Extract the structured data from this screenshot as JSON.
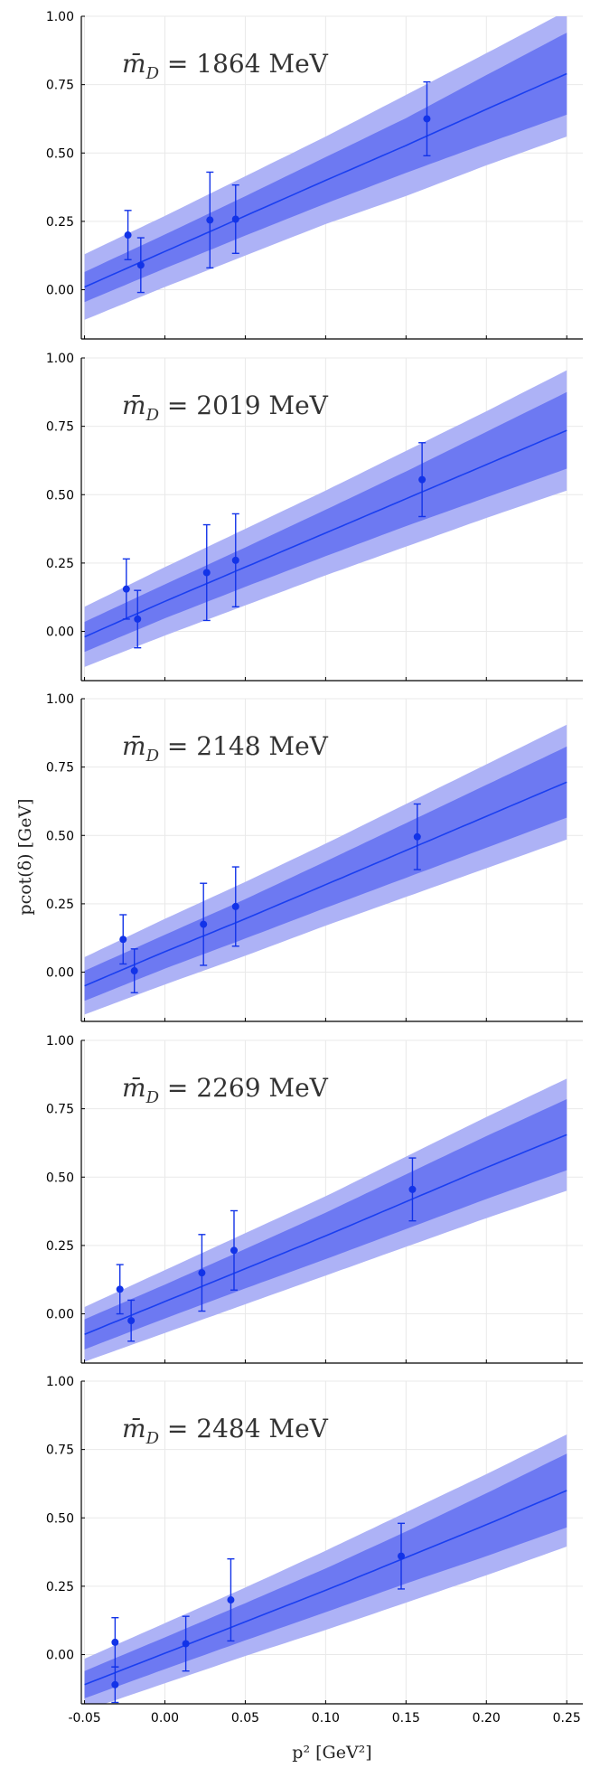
{
  "chart_data": {
    "type": "line",
    "layout": "stacked-panels",
    "xlabel": "p² [GeV²]",
    "ylabel": "pcot(δ) [GeV]",
    "xlim": [
      -0.052,
      0.26
    ],
    "ylim": [
      -0.18,
      1.0
    ],
    "xticks": [
      -0.05,
      0.0,
      0.05,
      0.1,
      0.15,
      0.2,
      0.25
    ],
    "xtick_labels": [
      "-0.05",
      "0.00",
      "0.05",
      "0.10",
      "0.15",
      "0.20",
      "0.25"
    ],
    "yticks": [
      0.0,
      0.25,
      0.5,
      0.75,
      1.0
    ],
    "ytick_labels": [
      "0.00",
      "0.25",
      "0.50",
      "0.75",
      "1.00"
    ],
    "grid": true,
    "colors": {
      "line": "#1a3ff0",
      "band_inner": "#6d79f2",
      "band_outer": "#adb2f6",
      "point": "#1233e8"
    },
    "panels": [
      {
        "label_symbol": "m̄",
        "label_sub": "D",
        "label_value": " = 1864 MeV",
        "fit": {
          "x": [
            -0.05,
            0.0,
            0.05,
            0.1,
            0.15,
            0.2,
            0.25
          ],
          "y": [
            0.01,
            0.14,
            0.27,
            0.4,
            0.5275,
            0.66,
            0.79
          ]
        },
        "band_inner_halfwidth": [
          0.055,
          0.062,
          0.072,
          0.085,
          0.1,
          0.125,
          0.15
        ],
        "band_outer_halfwidth": [
          0.12,
          0.13,
          0.145,
          0.16,
          0.185,
          0.205,
          0.23
        ],
        "points": [
          {
            "x": -0.023,
            "y": 0.2,
            "yerr_low": 0.09,
            "yerr_high": 0.09
          },
          {
            "x": -0.015,
            "y": 0.09,
            "yerr_low": 0.1,
            "yerr_high": 0.1
          },
          {
            "x": 0.028,
            "y": 0.255,
            "yerr_low": 0.175,
            "yerr_high": 0.175
          },
          {
            "x": 0.044,
            "y": 0.258,
            "yerr_low": 0.125,
            "yerr_high": 0.125
          },
          {
            "x": 0.163,
            "y": 0.625,
            "yerr_low": 0.135,
            "yerr_high": 0.135
          }
        ]
      },
      {
        "label_symbol": "m̄",
        "label_sub": "D",
        "label_value": " = 2019 MeV",
        "fit": {
          "x": [
            -0.05,
            0.0,
            0.05,
            0.1,
            0.15,
            0.2,
            0.25
          ],
          "y": [
            -0.02,
            0.11,
            0.235,
            0.36,
            0.485,
            0.61,
            0.735
          ]
        },
        "band_inner_halfwidth": [
          0.055,
          0.062,
          0.072,
          0.085,
          0.1,
          0.12,
          0.14
        ],
        "band_outer_halfwidth": [
          0.11,
          0.125,
          0.14,
          0.155,
          0.175,
          0.195,
          0.22
        ],
        "points": [
          {
            "x": -0.024,
            "y": 0.155,
            "yerr_low": 0.11,
            "yerr_high": 0.11
          },
          {
            "x": -0.017,
            "y": 0.045,
            "yerr_low": 0.105,
            "yerr_high": 0.105
          },
          {
            "x": 0.026,
            "y": 0.215,
            "yerr_low": 0.175,
            "yerr_high": 0.175
          },
          {
            "x": 0.044,
            "y": 0.26,
            "yerr_low": 0.17,
            "yerr_high": 0.17
          },
          {
            "x": 0.16,
            "y": 0.555,
            "yerr_low": 0.135,
            "yerr_high": 0.135
          }
        ]
      },
      {
        "label_symbol": "m̄",
        "label_sub": "D",
        "label_value": " = 2148 MeV",
        "fit": {
          "x": [
            -0.05,
            0.0,
            0.05,
            0.1,
            0.15,
            0.2,
            0.25
          ],
          "y": [
            -0.05,
            0.075,
            0.195,
            0.32,
            0.445,
            0.57,
            0.695
          ]
        },
        "band_inner_halfwidth": [
          0.055,
          0.062,
          0.072,
          0.085,
          0.1,
          0.115,
          0.13
        ],
        "band_outer_halfwidth": [
          0.105,
          0.12,
          0.135,
          0.15,
          0.17,
          0.19,
          0.21
        ],
        "points": [
          {
            "x": -0.026,
            "y": 0.12,
            "yerr_low": 0.09,
            "yerr_high": 0.09
          },
          {
            "x": -0.019,
            "y": 0.005,
            "yerr_low": 0.08,
            "yerr_high": 0.08
          },
          {
            "x": 0.024,
            "y": 0.175,
            "yerr_low": 0.15,
            "yerr_high": 0.15
          },
          {
            "x": 0.044,
            "y": 0.24,
            "yerr_low": 0.145,
            "yerr_high": 0.145
          },
          {
            "x": 0.157,
            "y": 0.495,
            "yerr_low": 0.12,
            "yerr_high": 0.12
          }
        ]
      },
      {
        "label_symbol": "m̄",
        "label_sub": "D",
        "label_value": " = 2269 MeV",
        "fit": {
          "x": [
            -0.05,
            0.0,
            0.05,
            0.1,
            0.15,
            0.2,
            0.25
          ],
          "y": [
            -0.075,
            0.045,
            0.165,
            0.285,
            0.41,
            0.535,
            0.655
          ]
        },
        "band_inner_halfwidth": [
          0.055,
          0.062,
          0.072,
          0.085,
          0.1,
          0.115,
          0.13
        ],
        "band_outer_halfwidth": [
          0.1,
          0.115,
          0.13,
          0.145,
          0.165,
          0.185,
          0.205
        ],
        "points": [
          {
            "x": -0.028,
            "y": 0.09,
            "yerr_low": 0.09,
            "yerr_high": 0.09
          },
          {
            "x": -0.021,
            "y": -0.025,
            "yerr_low": 0.075,
            "yerr_high": 0.075
          },
          {
            "x": 0.023,
            "y": 0.15,
            "yerr_low": 0.14,
            "yerr_high": 0.14
          },
          {
            "x": 0.043,
            "y": 0.232,
            "yerr_low": 0.145,
            "yerr_high": 0.145
          },
          {
            "x": 0.154,
            "y": 0.455,
            "yerr_low": 0.115,
            "yerr_high": 0.115
          }
        ]
      },
      {
        "label_symbol": "m̄",
        "label_sub": "D",
        "label_value": " = 2484 MeV",
        "fit": {
          "x": [
            -0.05,
            0.0,
            0.05,
            0.1,
            0.15,
            0.2,
            0.25
          ],
          "y": [
            -0.11,
            0.005,
            0.12,
            0.235,
            0.355,
            0.475,
            0.6
          ]
        },
        "band_inner_halfwidth": [
          0.05,
          0.058,
          0.068,
          0.08,
          0.095,
          0.115,
          0.135
        ],
        "band_outer_halfwidth": [
          0.095,
          0.11,
          0.125,
          0.145,
          0.165,
          0.185,
          0.205
        ],
        "points": [
          {
            "x": -0.031,
            "y": 0.045,
            "yerr_low": 0.09,
            "yerr_high": 0.09
          },
          {
            "x": -0.031,
            "y": -0.11,
            "yerr_low": 0.065,
            "yerr_high": 0.065
          },
          {
            "x": 0.013,
            "y": 0.04,
            "yerr_low": 0.1,
            "yerr_high": 0.1
          },
          {
            "x": 0.041,
            "y": 0.2,
            "yerr_low": 0.15,
            "yerr_high": 0.15
          },
          {
            "x": 0.147,
            "y": 0.36,
            "yerr_low": 0.12,
            "yerr_high": 0.12
          }
        ]
      }
    ]
  }
}
